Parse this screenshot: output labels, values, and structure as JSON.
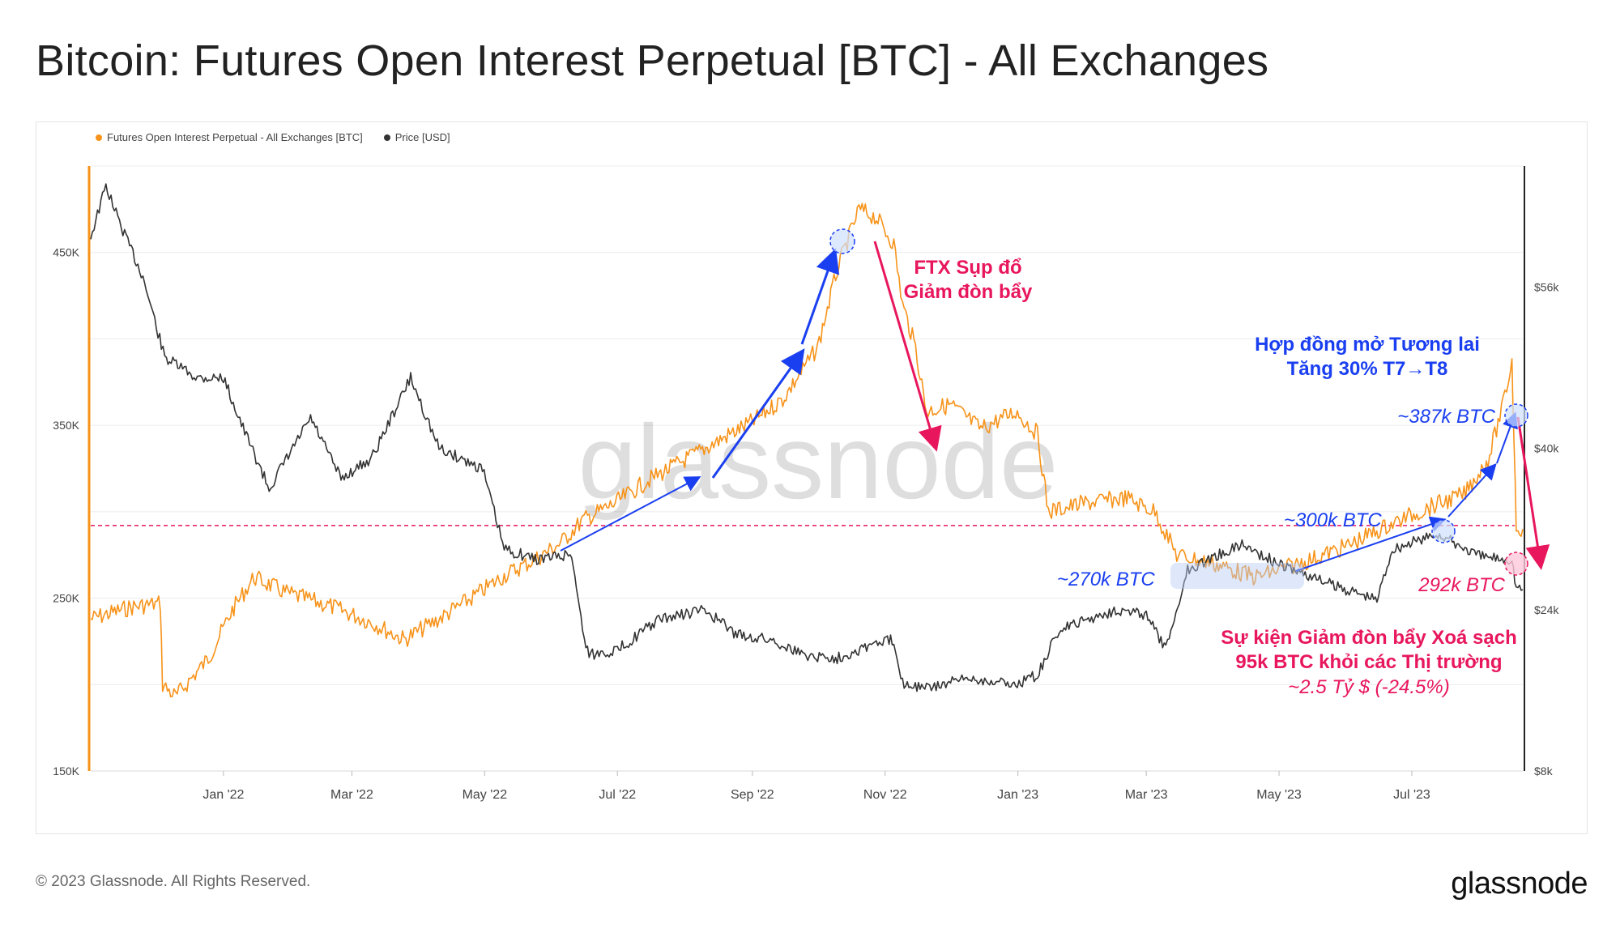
{
  "chart_data": {
    "type": "line",
    "title": "Bitcoin: Futures Open Interest Perpetual [BTC] - All Exchanges",
    "legend_position": "top-left",
    "grid": true,
    "x_ticks": [
      "Jan '22",
      "Mar '22",
      "May '22",
      "Jul '22",
      "Sep '22",
      "Nov '22",
      "Jan '23",
      "Mar '23",
      "May '23",
      "Jul '23"
    ],
    "x_range": [
      "2021-11-01",
      "2023-08-21"
    ],
    "y_left": {
      "range": [
        150000,
        500000
      ],
      "ticks": [
        "150K",
        "250K",
        "350K",
        "450K"
      ],
      "tick_values": [
        150000,
        250000,
        350000,
        450000
      ]
    },
    "y_right": {
      "range": [
        8000,
        68000
      ],
      "ticks": [
        "$8k",
        "$24k",
        "$40k",
        "$56k"
      ],
      "tick_values": [
        8000,
        24000,
        40000,
        56000
      ]
    },
    "series": [
      {
        "name": "Futures Open Interest Perpetual - All Exchanges [BTC]",
        "color": "#f7931a",
        "axis": "left",
        "points": [
          [
            "2021-11-01",
            238000
          ],
          [
            "2021-11-20",
            245000
          ],
          [
            "2021-12-03",
            247000
          ],
          [
            "2021-12-04",
            200000
          ],
          [
            "2021-12-10",
            193000
          ],
          [
            "2021-12-25",
            215000
          ],
          [
            "2022-01-05",
            243000
          ],
          [
            "2022-01-15",
            262000
          ],
          [
            "2022-01-30",
            253000
          ],
          [
            "2022-02-20",
            245000
          ],
          [
            "2022-03-10",
            236000
          ],
          [
            "2022-03-25",
            226000
          ],
          [
            "2022-04-10",
            238000
          ],
          [
            "2022-04-25",
            250000
          ],
          [
            "2022-05-10",
            263000
          ],
          [
            "2022-05-25",
            273000
          ],
          [
            "2022-06-05",
            282000
          ],
          [
            "2022-06-15",
            295000
          ],
          [
            "2022-06-30",
            305000
          ],
          [
            "2022-07-15",
            318000
          ],
          [
            "2022-08-01",
            330000
          ],
          [
            "2022-08-15",
            340000
          ],
          [
            "2022-09-01",
            352000
          ],
          [
            "2022-09-15",
            365000
          ],
          [
            "2022-10-01",
            395000
          ],
          [
            "2022-10-10",
            440000
          ],
          [
            "2022-10-20",
            475000
          ],
          [
            "2022-10-28",
            470000
          ],
          [
            "2022-11-05",
            455000
          ],
          [
            "2022-11-09",
            420000
          ],
          [
            "2022-11-15",
            395000
          ],
          [
            "2022-11-20",
            358000
          ],
          [
            "2022-12-01",
            362000
          ],
          [
            "2022-12-15",
            348000
          ],
          [
            "2022-12-31",
            358000
          ],
          [
            "2023-01-10",
            345000
          ],
          [
            "2023-01-15",
            300000
          ],
          [
            "2023-02-01",
            305000
          ],
          [
            "2023-02-20",
            308000
          ],
          [
            "2023-03-05",
            300000
          ],
          [
            "2023-03-15",
            275000
          ],
          [
            "2023-04-01",
            270000
          ],
          [
            "2023-04-20",
            262000
          ],
          [
            "2023-05-15",
            272000
          ],
          [
            "2023-06-01",
            280000
          ],
          [
            "2023-06-20",
            292000
          ],
          [
            "2023-07-10",
            303000
          ],
          [
            "2023-07-25",
            310000
          ],
          [
            "2023-08-05",
            330000
          ],
          [
            "2023-08-12",
            362000
          ],
          [
            "2023-08-16",
            387000
          ],
          [
            "2023-08-17",
            340000
          ],
          [
            "2023-08-18",
            292000
          ],
          [
            "2023-08-21",
            290000
          ]
        ]
      },
      {
        "name": "Price [USD]",
        "color": "#333333",
        "axis": "right",
        "points": [
          [
            "2021-11-01",
            61000
          ],
          [
            "2021-11-08",
            66000
          ],
          [
            "2021-11-15",
            62000
          ],
          [
            "2021-11-25",
            57000
          ],
          [
            "2021-12-05",
            49000
          ],
          [
            "2021-12-20",
            47000
          ],
          [
            "2022-01-01",
            47000
          ],
          [
            "2022-01-10",
            42000
          ],
          [
            "2022-01-22",
            36000
          ],
          [
            "2022-02-10",
            43000
          ],
          [
            "2022-02-24",
            37000
          ],
          [
            "2022-03-10",
            39000
          ],
          [
            "2022-03-28",
            47000
          ],
          [
            "2022-04-10",
            40000
          ],
          [
            "2022-04-30",
            38000
          ],
          [
            "2022-05-10",
            30000
          ],
          [
            "2022-05-25",
            29000
          ],
          [
            "2022-06-10",
            29500
          ],
          [
            "2022-06-15",
            22000
          ],
          [
            "2022-06-18",
            19500
          ],
          [
            "2022-07-01",
            20000
          ],
          [
            "2022-07-20",
            23000
          ],
          [
            "2022-08-10",
            24000
          ],
          [
            "2022-08-25",
            21500
          ],
          [
            "2022-09-10",
            21000
          ],
          [
            "2022-09-25",
            19500
          ],
          [
            "2022-10-10",
            19200
          ],
          [
            "2022-10-25",
            20500
          ],
          [
            "2022-11-05",
            21000
          ],
          [
            "2022-11-09",
            16800
          ],
          [
            "2022-11-20",
            16200
          ],
          [
            "2022-12-10",
            17200
          ],
          [
            "2022-12-31",
            16600
          ],
          [
            "2023-01-10",
            17500
          ],
          [
            "2023-01-20",
            22000
          ],
          [
            "2023-02-15",
            24000
          ],
          [
            "2023-03-01",
            23500
          ],
          [
            "2023-03-10",
            20000
          ],
          [
            "2023-03-20",
            28000
          ],
          [
            "2023-04-14",
            30500
          ],
          [
            "2023-05-01",
            28500
          ],
          [
            "2023-05-25",
            26500
          ],
          [
            "2023-06-15",
            25000
          ],
          [
            "2023-06-22",
            30000
          ],
          [
            "2023-07-13",
            31500
          ],
          [
            "2023-08-01",
            29300
          ],
          [
            "2023-08-16",
            29000
          ],
          [
            "2023-08-18",
            26200
          ],
          [
            "2023-08-21",
            26000
          ]
        ]
      }
    ],
    "reference_lines": [
      {
        "y": 292000,
        "axis": "left",
        "style": "dashed",
        "color": "#e8175d"
      }
    ],
    "annotations": {
      "ftx": [
        "FTX Sụp đổ",
        "Giảm đòn bẩy"
      ],
      "oi_growth": [
        "Hợp đồng mở Tương lai",
        "Tăng 30% T7→T8"
      ],
      "oi_387k": "~387k BTC",
      "oi_300k": "~300k BTC",
      "oi_270k": "~270k BTC",
      "oi_292k": "292k BTC",
      "deleverage": [
        "Sự kiện Giảm đòn bẩy Xoá sạch",
        "95k BTC khỏi các Thị trường"
      ],
      "deleverage_usd": "~2.5 Tỷ $ (-24.5%)"
    },
    "watermark": "glassnode"
  },
  "legend": {
    "oi_label": "Futures Open Interest Perpetual - All Exchanges [BTC]",
    "price_label": "Price [USD]"
  },
  "footer": {
    "copyright": "© 2023 Glassnode. All Rights Reserved.",
    "brand": "glassnode"
  },
  "colors": {
    "oi": "#f7931a",
    "price": "#333333",
    "accent_red": "#e8175d",
    "accent_blue": "#1a3ff0"
  }
}
